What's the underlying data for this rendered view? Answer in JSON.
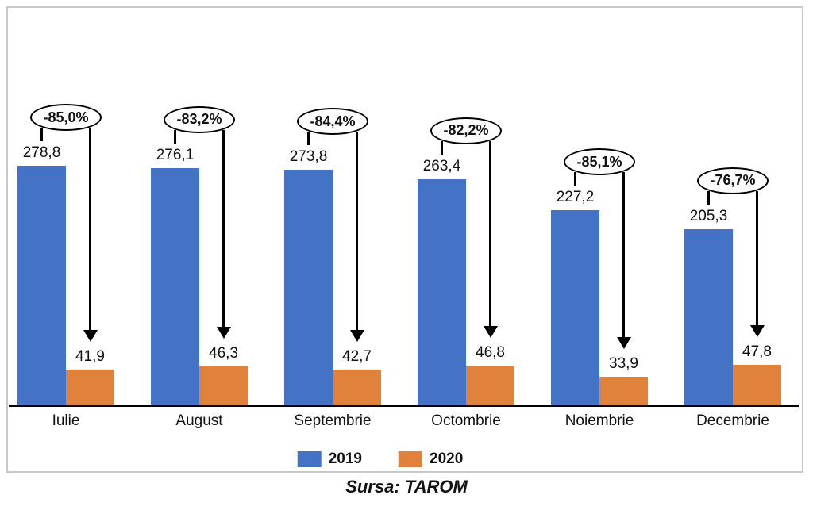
{
  "chart_data": {
    "type": "bar",
    "title": "",
    "xlabel": "",
    "ylabel": "",
    "categories": [
      "Iulie",
      "August",
      "Septembrie",
      "Octombrie",
      "Noiembrie",
      "Decembrie"
    ],
    "series": [
      {
        "name": "2019",
        "color": "#4472C4",
        "values": [
          278.8,
          276.1,
          273.8,
          263.4,
          227.2,
          205.3
        ],
        "labels": [
          "278,8",
          "276,1",
          "273,8",
          "263,4",
          "227,2",
          "205,3"
        ]
      },
      {
        "name": "2020",
        "color": "#E0813C",
        "values": [
          41.9,
          46.3,
          42.7,
          46.8,
          33.9,
          47.8
        ],
        "labels": [
          "41,9",
          "46,3",
          "42,7",
          "46,8",
          "33,9",
          "47,8"
        ]
      }
    ],
    "annotations": [
      "-85,0%",
      "-83,2%",
      "-84,4%",
      "-82,2%",
      "-85,1%",
      "-76,7%"
    ],
    "legend": {
      "position": "bottom",
      "entries": [
        "2019",
        "2020"
      ]
    },
    "source_caption": "Sursa: TAROM",
    "ylim": [
      0,
      300
    ],
    "grid": false
  },
  "colors": {
    "series_2019": "#4472C4",
    "series_2020": "#E0813C",
    "annotation_outline": "#000000",
    "axis_line": "#000000",
    "frame_border": "#C9C9C9"
  }
}
